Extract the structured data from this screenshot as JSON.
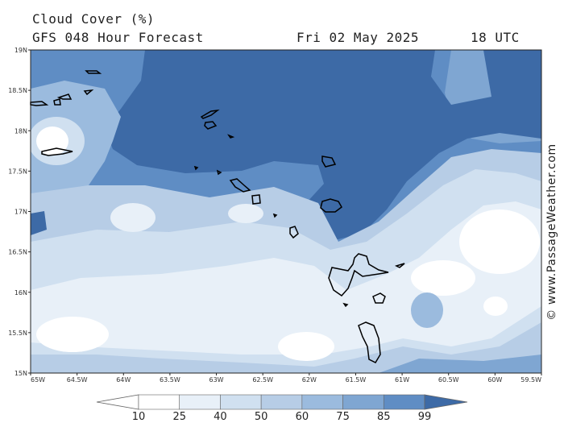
{
  "header": {
    "title": "Cloud Cover (%)",
    "subtitle": "GFS 048 Hour Forecast",
    "date": "Fri 02 May 2025",
    "time": "18 UTC"
  },
  "map": {
    "lat_labels": [
      "19N",
      "18.5N",
      "18N",
      "17.5N",
      "17N",
      "16.5N",
      "16N",
      "15.5N",
      "15N"
    ],
    "lon_labels": [
      "65W",
      "64.5W",
      "64W",
      "63.5W",
      "63W",
      "62.5W",
      "62W",
      "61.5W",
      "61W",
      "60.5W",
      "60W",
      "59.5W"
    ],
    "colors": {
      "c10": "#ffffff",
      "c25": "#e8f0f8",
      "c40": "#d0e0f0",
      "c50": "#b7cde6",
      "c60": "#9bbbde",
      "c75": "#7fa6d2",
      "c85": "#5f8dc4",
      "c99": "#3d6aa6",
      "coast": "#000000",
      "border": "#222222"
    }
  },
  "colorbar": {
    "labels": [
      "10",
      "25",
      "40",
      "50",
      "60",
      "75",
      "85",
      "99"
    ]
  },
  "credit": "© www.PassageWeather.com"
}
